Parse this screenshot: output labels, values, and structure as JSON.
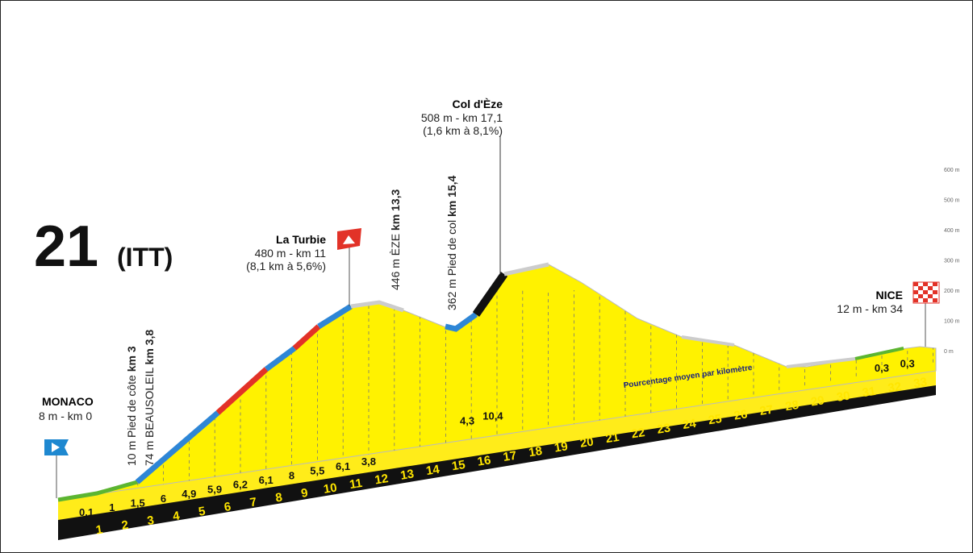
{
  "stage": {
    "number": "21",
    "kind": "(ITT)"
  },
  "places": [
    {
      "name": "MONACO",
      "info": [
        "8 m - km 0"
      ]
    },
    {
      "name": "La Turbie",
      "info": [
        "480 m -  km 11",
        "(8,1 km à 5,6%)"
      ]
    },
    {
      "name": "Col d'Èze",
      "info": [
        "508 m - km 17,1",
        "(1,6 km à 8,1%)"
      ]
    },
    {
      "name": "NICE",
      "info": [
        "12 m - km 34"
      ]
    }
  ],
  "points": [
    {
      "text": "10 m Pied de côte ",
      "bold": "km 3"
    },
    {
      "text": "74 m BEAUSOLEIL ",
      "bold": "km 3,8"
    },
    {
      "text": "446 m ÈZE ",
      "bold": "km 13,3"
    },
    {
      "text": "362 m Pied de col ",
      "bold": "km 15,4"
    }
  ],
  "altitude_axis": [
    "600 m",
    "500 m",
    "400 m",
    "300 m",
    "200 m",
    "100 m",
    "0 m"
  ],
  "km": [
    "1",
    "2",
    "3",
    "4",
    "5",
    "6",
    "7",
    "8",
    "9",
    "10",
    "11",
    "12",
    "13",
    "14",
    "15",
    "16",
    "17",
    "18",
    "19",
    "20",
    "21",
    "22",
    "23",
    "24",
    "25",
    "26",
    "27",
    "28",
    "29",
    "30",
    "31",
    "32",
    "33"
  ],
  "gradients": [
    "0,1",
    "1",
    "1,5",
    "6",
    "4,9",
    "5,9",
    "6,2",
    "6,1",
    "8",
    "5,5",
    "6,1",
    "3,8"
  ],
  "gradients_upper": [
    "4,3",
    "10,4"
  ],
  "gradients_end": [
    "0,3",
    "0,3"
  ],
  "legend": "Pourcentage moyen par kilomètre"
}
